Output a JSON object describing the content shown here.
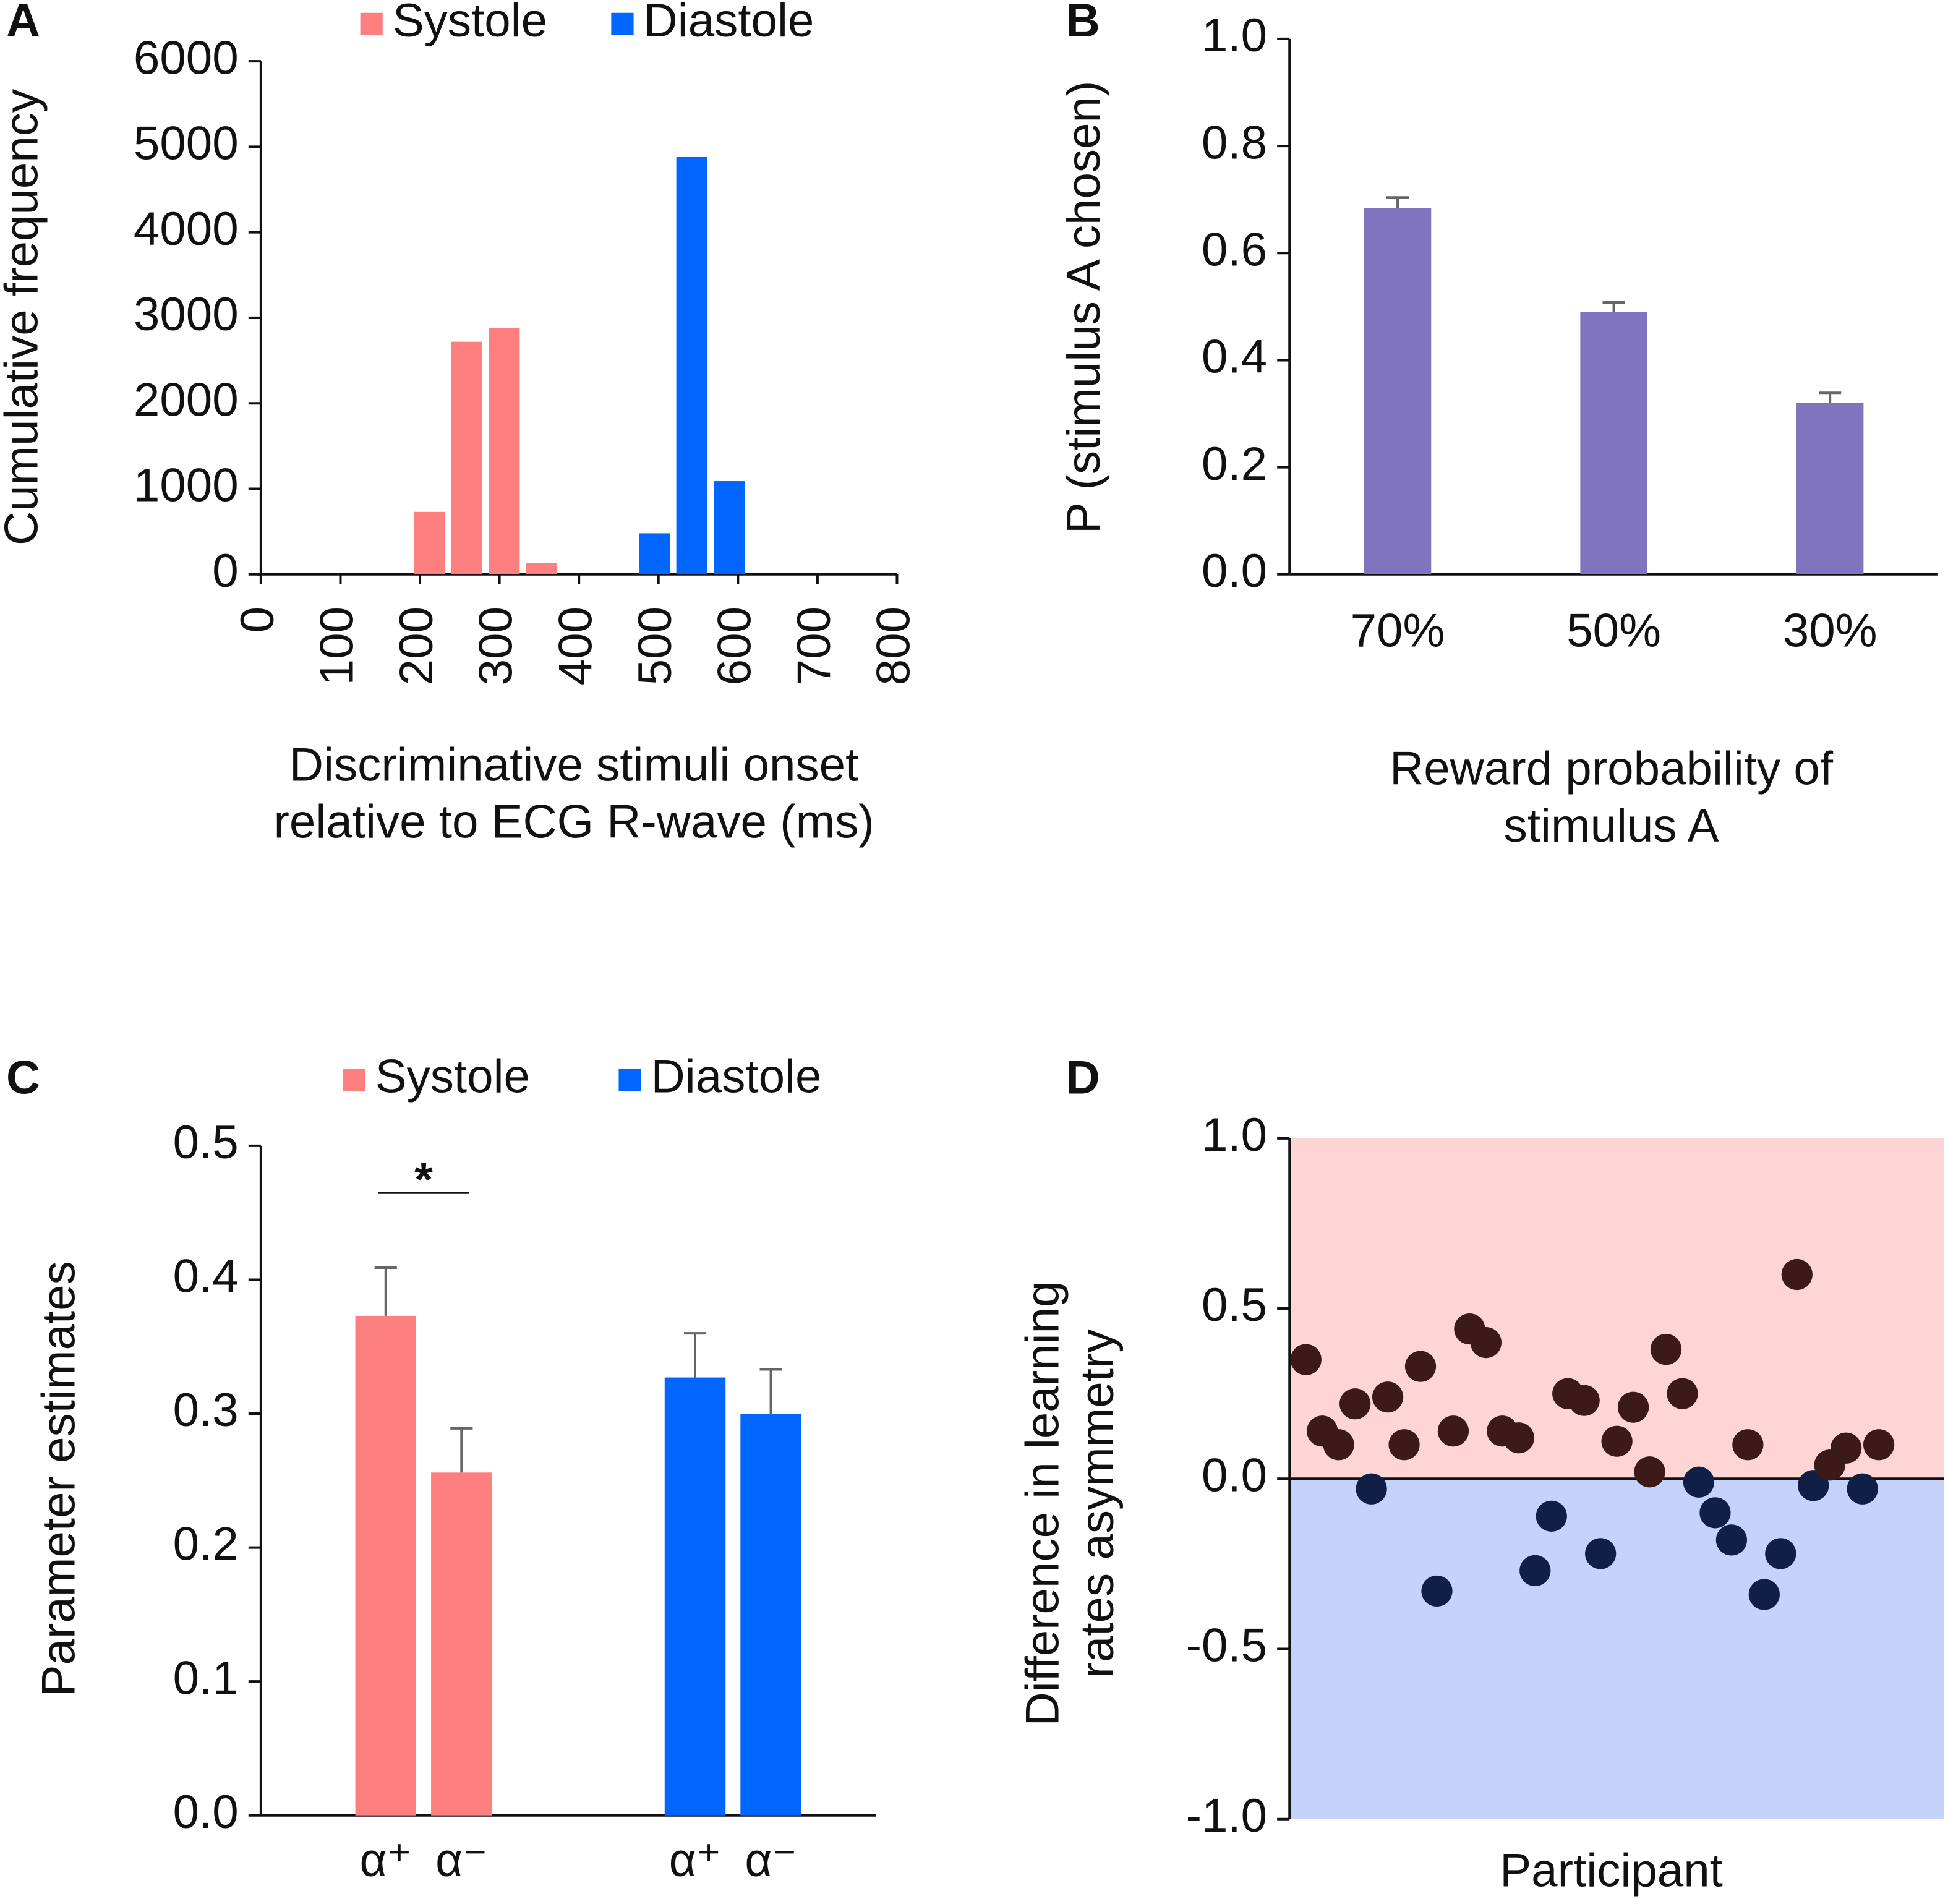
{
  "chart_data": [
    {
      "type": "bar",
      "panel_label": "A",
      "ylabel": "Cumulative frequency",
      "xlabel": [
        "Discriminative stimuli onset",
        "relative to ECG R-wave (ms)"
      ],
      "series": [
        {
          "name": "Systole",
          "color": "#fd7f7f",
          "x": [
            212,
            259,
            306,
            353
          ],
          "values": [
            730,
            2720,
            2880,
            130
          ]
        },
        {
          "name": "Diastole",
          "color": "#0066ff",
          "x": [
            495,
            542,
            589
          ],
          "values": [
            480,
            4880,
            1090
          ]
        }
      ],
      "xlim": [
        0,
        800
      ],
      "xticks": [
        0,
        100,
        200,
        300,
        400,
        500,
        600,
        700,
        800
      ],
      "ylim": [
        0,
        6000
      ],
      "yticks": [
        0,
        1000,
        2000,
        3000,
        4000,
        5000,
        6000
      ],
      "legend": "top"
    },
    {
      "type": "bar",
      "panel_label": "B",
      "ylabel": "P (stimulus A chosen)",
      "xlabel": [
        "Reward probability of",
        "stimulus A"
      ],
      "categories": [
        "70%",
        "50%",
        "30%"
      ],
      "series": [
        {
          "name": null,
          "color": "#8074bf",
          "values": [
            0.684,
            0.49,
            0.32
          ],
          "errors": [
            0.02,
            0.018,
            0.019
          ]
        }
      ],
      "ylim": [
        0,
        1.0
      ],
      "yticks": [
        {
          "value": 0,
          "label": "0.0"
        },
        0.2,
        0.4,
        0.6,
        0.8,
        {
          "value": 1,
          "label": "1.0"
        }
      ]
    },
    {
      "type": "bar",
      "panel_label": "C",
      "ylabel": "Parameter estimates",
      "categories": [
        "α⁺",
        "α⁻"
      ],
      "series": [
        {
          "name": "Systole",
          "color": "#fd7f7f",
          "values": [
            0.373,
            0.256
          ],
          "errors": [
            0.036,
            0.033
          ]
        },
        {
          "name": "Diastole",
          "color": "#0066ff",
          "values": [
            0.327,
            0.3
          ],
          "errors": [
            0.033,
            0.033
          ]
        }
      ],
      "ylim": [
        0,
        0.5
      ],
      "yticks": [
        {
          "value": 0,
          "label": "0.0"
        },
        0.1,
        0.2,
        0.3,
        0.4,
        0.5
      ],
      "annotation": "*",
      "legend": "top"
    },
    {
      "type": "scatter",
      "panel_label": "D",
      "ylabel": [
        "Difference in learning",
        "rates asymmetry"
      ],
      "xlabel": "Participant",
      "x": [
        1,
        2,
        3,
        4,
        5,
        6,
        7,
        8,
        9,
        10,
        11,
        12,
        13,
        14,
        15,
        16,
        17,
        18,
        19,
        20,
        21,
        22,
        23,
        24,
        25,
        26,
        27,
        28,
        29,
        30,
        31,
        32,
        33,
        34,
        35,
        36
      ],
      "values": [
        0.35,
        0.14,
        0.1,
        0.22,
        -0.03,
        0.24,
        0.1,
        0.33,
        -0.33,
        0.14,
        0.44,
        0.4,
        0.14,
        0.12,
        -0.27,
        -0.11,
        0.25,
        0.23,
        -0.22,
        0.11,
        0.21,
        0.02,
        0.38,
        0.25,
        -0.01,
        -0.1,
        -0.18,
        0.1,
        -0.34,
        -0.22,
        0.6,
        -0.02,
        0.04,
        0.09,
        -0.03,
        0.1
      ],
      "positive_color": "#3d1a1a",
      "negative_color": "#0f1f45",
      "region_colors": [
        "#fdd5d5",
        "#c5d3fb"
      ],
      "xlim": [
        0,
        40
      ],
      "ylim": [
        -1.0,
        1.0
      ],
      "yticks": [
        {
          "value": -1,
          "label": "-1.0"
        },
        -0.5,
        {
          "value": 0,
          "label": "0.0"
        },
        0.5,
        {
          "value": 1,
          "label": "1.0"
        }
      ]
    }
  ]
}
